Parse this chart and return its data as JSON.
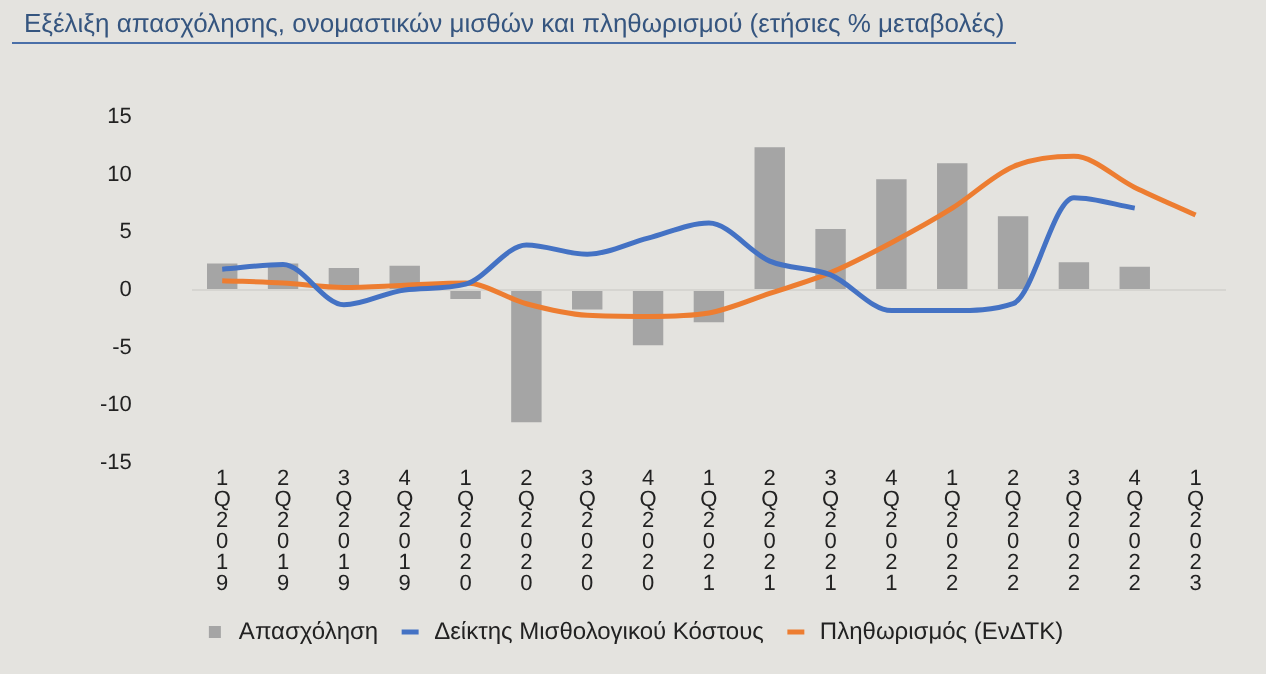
{
  "chart_data": {
    "type": "bar",
    "title": "Εξέλιξη απασχόλησης, ονομαστικών μισθών και πληθωρισμού (ετήσιες % μεταβολές)",
    "categories": [
      "1Q 2019",
      "2Q 2019",
      "3Q 2019",
      "4Q 2019",
      "1Q 2020",
      "2Q 2020",
      "3Q 2020",
      "4Q 2020",
      "1Q 2021",
      "2Q 2021",
      "3Q 2021",
      "4Q 2021",
      "1Q 2022",
      "2Q 2022",
      "3Q 2022",
      "4Q 2022",
      "1Q 2023"
    ],
    "series": [
      {
        "name": "Απασχόληση",
        "color": "#a5a5a5",
        "values": [
          2.3,
          2.3,
          1.9,
          2.1,
          -0.8,
          -11.5,
          -1.7,
          -4.8,
          -2.8,
          12.4,
          5.3,
          9.6,
          11.0,
          6.4,
          2.4,
          2.0,
          null
        ]
      },
      {
        "name": "Δείκτης Μισθολογικού Κόστους",
        "type": "line",
        "color": "#4472c4",
        "values": [
          1.8,
          2.2,
          -1.3,
          0.0,
          0.5,
          3.9,
          3.1,
          4.5,
          5.8,
          2.5,
          1.3,
          -1.8,
          -1.8,
          -1.2,
          8.0,
          7.1,
          null
        ]
      },
      {
        "name": "Πληθωρισμός (ΕνΔΤΚ)",
        "type": "line",
        "color": "#ed7d31",
        "values": [
          0.8,
          0.6,
          0.2,
          0.4,
          0.6,
          -1.2,
          -2.2,
          -2.3,
          -2.0,
          -0.3,
          1.5,
          4.1,
          7.1,
          10.7,
          11.6,
          8.9,
          6.5
        ]
      }
    ],
    "ylim": [
      -15,
      15
    ],
    "yticks": [
      -15,
      -10,
      -5,
      0,
      5,
      10,
      15
    ],
    "legend": "bottom"
  }
}
